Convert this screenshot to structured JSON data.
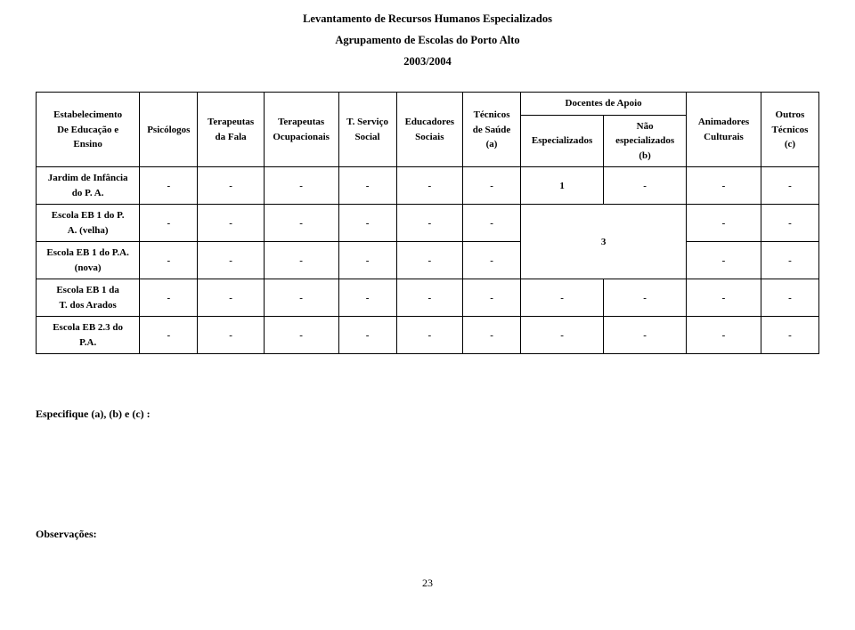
{
  "header": {
    "line1": "Levantamento de Recursos Humanos Especializados",
    "line2": "Agrupamento de Escolas do Porto Alto",
    "line3": "2003/2004"
  },
  "columns": {
    "c0_l1": "Estabelecimento",
    "c0_l2": "De Educação e",
    "c0_l3": "Ensino",
    "c1": "Psicólogos",
    "c2_l1": "Terapeutas",
    "c2_l2": "da Fala",
    "c3_l1": "Terapeutas",
    "c3_l2": "Ocupacionais",
    "c4_l1": "T. Serviço",
    "c4_l2": "Social",
    "c5_l1": "Educadores",
    "c5_l2": "Sociais",
    "c6_l1": "Técnicos",
    "c6_l2": "de Saúde",
    "c6_l3": "(a)",
    "c7_top": "Docentes de Apoio",
    "c7a": "Especializados",
    "c7b_l1": "Não",
    "c7b_l2": "especializados",
    "c7b_l3": "(b)",
    "c8_l1": "Animadores",
    "c8_l2": "Culturais",
    "c9_l1": "Outros",
    "c9_l2": "Técnicos",
    "c9_l3": "(c)"
  },
  "rows": [
    {
      "label_l1": "Jardim de Infância",
      "label_l2": "do P. A.",
      "cells": [
        "-",
        "-",
        "-",
        "-",
        "-",
        "-",
        "1",
        "-",
        "-",
        "-"
      ],
      "merged78": false
    },
    {
      "label_l1": "Escola EB 1 do   P.",
      "label_l2": "A. (velha)",
      "cells": [
        "-",
        "-",
        "-",
        "-",
        "-",
        "-",
        "",
        "-",
        "-",
        "-"
      ],
      "merged78": true,
      "merged78_value": "3",
      "merged78_rowspan": 2
    },
    {
      "label_l1": "Escola EB 1 do P.A.",
      "label_l2": "(nova)",
      "cells": [
        "-",
        "-",
        "-",
        "-",
        "-",
        "-",
        "",
        "-",
        "-",
        "-"
      ],
      "merged78": "skip"
    },
    {
      "label_l1": "Escola EB 1 da",
      "label_l2": "T. dos Arados",
      "cells": [
        "-",
        "-",
        "-",
        "-",
        "-",
        "-",
        "-",
        "-",
        "-",
        "-"
      ],
      "merged78": false
    },
    {
      "label_l1": "Escola EB 2.3 do",
      "label_l2": "P.A.",
      "cells": [
        "-",
        "-",
        "-",
        "-",
        "-",
        "-",
        "-",
        "-",
        "-",
        "-"
      ],
      "merged78": false
    }
  ],
  "footer": {
    "spec": "Especifique (a), (b) e (c) :",
    "obs": "Observações:",
    "pagenum": "23"
  },
  "style": {
    "col_widths_pct": [
      12.5,
      7,
      8,
      9,
      7,
      8,
      7,
      10,
      10,
      9,
      7
    ]
  }
}
